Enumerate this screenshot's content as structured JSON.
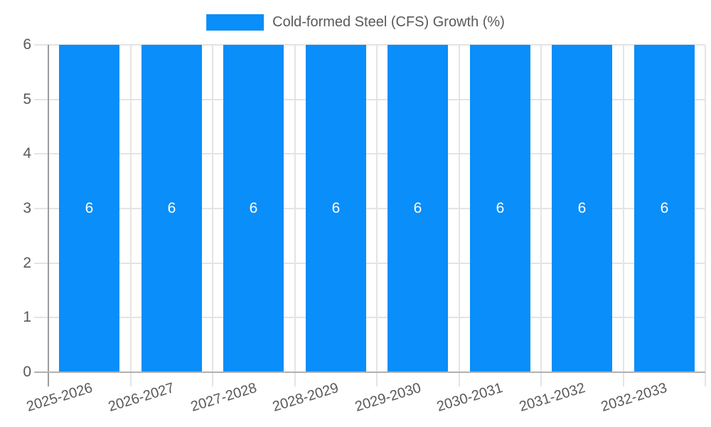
{
  "colors": {
    "bar": "#0a8ef9",
    "grid": "#e4e4e4",
    "axis_line": "#9b9b9b",
    "baseline": "#b1b1b1",
    "tick_text": "#595959",
    "value_label": "#ffffff"
  },
  "legend": {
    "label": "Cold-formed Steel (CFS) Growth (%)"
  },
  "chart_data": {
    "type": "bar",
    "title": "Cold-formed Steel (CFS) Growth (%)",
    "legend_entries": [
      "Cold-formed Steel (CFS) Growth (%)"
    ],
    "legend_position": "top-center",
    "categories": [
      "2025-2026",
      "2026-2027",
      "2027-2028",
      "2028-2029",
      "2029-2030",
      "2030-2031",
      "2031-2032",
      "2032-2033"
    ],
    "values": [
      6,
      6,
      6,
      6,
      6,
      6,
      6,
      6
    ],
    "bar_labels": [
      "6",
      "6",
      "6",
      "6",
      "6",
      "6",
      "6",
      "6"
    ],
    "xlabel": "",
    "ylabel": "",
    "ylim": [
      0,
      6
    ],
    "yticks": [
      6,
      5,
      4,
      3,
      2,
      1,
      0
    ],
    "grid": true
  }
}
